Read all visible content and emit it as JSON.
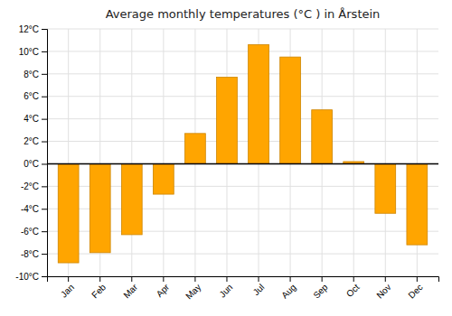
{
  "chart_data": {
    "type": "bar",
    "title": "Average monthly temperatures (°C ) in Årstein",
    "categories": [
      "Jan",
      "Feb",
      "Mar",
      "Apr",
      "May",
      "Jun",
      "Jul",
      "Aug",
      "Sep",
      "Oct",
      "Nov",
      "Dec"
    ],
    "values": [
      -8.8,
      -7.9,
      -6.3,
      -2.7,
      2.7,
      7.7,
      10.6,
      9.5,
      4.8,
      0.2,
      -4.4,
      -7.2
    ],
    "color": "#FFA500",
    "ylim": [
      -10,
      12
    ],
    "yticks": [
      {
        "value": -10,
        "label": "-10°C"
      },
      {
        "value": -8,
        "label": "-8°C"
      },
      {
        "value": -6,
        "label": "-6°C"
      },
      {
        "value": -4,
        "label": "-4°C"
      },
      {
        "value": -2,
        "label": "-2°C"
      },
      {
        "value": 0,
        "label": "0°C"
      },
      {
        "value": 2,
        "label": "2°C"
      },
      {
        "value": 4,
        "label": "4°C"
      },
      {
        "value": 6,
        "label": "6°C"
      },
      {
        "value": 8,
        "label": "8°C"
      },
      {
        "value": 10,
        "label": "10°C"
      },
      {
        "value": 12,
        "label": "12°C"
      }
    ],
    "grid": true
  }
}
